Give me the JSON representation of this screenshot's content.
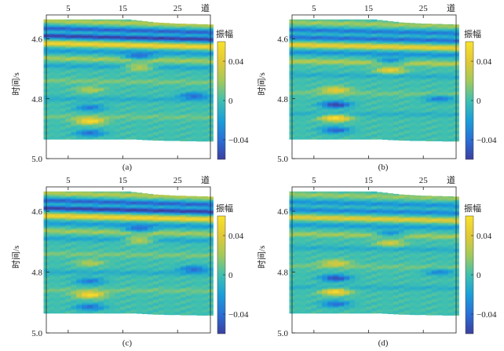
{
  "figure_domain": "seismic amplitude sections",
  "colormap": [
    "#3b3f9e",
    "#2a6fd6",
    "#1a9fd8",
    "#3fc0b0",
    "#a3c95a",
    "#e2c936",
    "#f9e22a"
  ],
  "chart_data": [
    {
      "type": "heatmap",
      "panel_label": "(a)",
      "x_tick_labels": [
        "5",
        "15",
        "25"
      ],
      "x_ticks": [
        5,
        15,
        25
      ],
      "xlim": [
        1,
        31
      ],
      "x_unit_label": "道",
      "y_tick_labels": [
        "4.6",
        "4.8",
        "5.0"
      ],
      "y_ticks": [
        4.6,
        4.8,
        5.0
      ],
      "ylim": [
        4.52,
        5.0
      ],
      "ylabel": "时间/s",
      "colorbar_title": "振幅",
      "colorbar_tick_labels": [
        "0.04",
        "0",
        "−0.04"
      ],
      "colorbar_ticks": [
        0.04,
        0,
        -0.04
      ],
      "clim": [
        -0.06,
        0.06
      ],
      "data_top_time": [
        4.535,
        4.535,
        4.535,
        4.535,
        4.535,
        4.535,
        4.535,
        4.535,
        4.535,
        4.535,
        4.535,
        4.535,
        4.535,
        4.535,
        4.535,
        4.535,
        4.537,
        4.539,
        4.541,
        4.543,
        4.545,
        4.546,
        4.547,
        4.548,
        4.549,
        4.549,
        4.55,
        4.55,
        4.551,
        4.551,
        4.552
      ],
      "data_bottom_time": [
        4.935,
        4.935,
        4.935,
        4.935,
        4.935,
        4.935,
        4.935,
        4.935,
        4.935,
        4.935,
        4.935,
        4.935,
        4.935,
        4.935,
        4.935,
        4.935,
        4.935,
        4.936,
        4.937,
        4.938,
        4.939,
        4.939,
        4.94,
        4.94,
        4.94,
        4.941,
        4.941,
        4.941,
        4.942,
        4.942,
        4.942
      ],
      "reflectors": [
        {
          "t0": 4.54,
          "dip": 0.014,
          "amp": 0.025
        },
        {
          "t0": 4.565,
          "dip": 0.014,
          "amp": -0.045
        },
        {
          "t0": 4.59,
          "dip": 0.012,
          "amp": -0.06
        },
        {
          "t0": 4.615,
          "dip": 0.012,
          "amp": 0.05
        },
        {
          "t0": 4.64,
          "dip": 0.01,
          "amp": -0.02
        },
        {
          "t0": 4.665,
          "dip": 0.01,
          "amp": 0.02
        },
        {
          "t0": 4.69,
          "dip": 0.008,
          "amp": -0.015
        },
        {
          "t0": 4.74,
          "dip": 0.006,
          "amp": 0.012
        },
        {
          "t0": 4.8,
          "dip": 0.004,
          "amp": -0.012
        },
        {
          "t0": 4.86,
          "dip": 0.002,
          "amp": 0.01
        }
      ],
      "anomalies": [
        {
          "trace": 18,
          "time": 4.66,
          "amp": -0.04
        },
        {
          "trace": 18,
          "time": 4.695,
          "amp": 0.04
        },
        {
          "trace": 28,
          "time": 4.79,
          "amp": -0.04
        },
        {
          "trace": 9,
          "time": 4.77,
          "amp": 0.025
        },
        {
          "trace": 9,
          "time": 4.83,
          "amp": -0.035
        },
        {
          "trace": 9,
          "time": 4.875,
          "amp": 0.055
        },
        {
          "trace": 9,
          "time": 4.915,
          "amp": -0.04
        }
      ]
    },
    {
      "type": "heatmap",
      "panel_label": "(b)",
      "x_tick_labels": [
        "5",
        "15",
        "25"
      ],
      "x_ticks": [
        5,
        15,
        25
      ],
      "xlim": [
        1,
        31
      ],
      "x_unit_label": "道",
      "y_tick_labels": [
        "4.6",
        "4.8",
        "5.0"
      ],
      "y_ticks": [
        4.6,
        4.8,
        5.0
      ],
      "ylim": [
        4.52,
        5.0
      ],
      "ylabel": "时间/s",
      "colorbar_title": "振幅",
      "colorbar_tick_labels": [
        "0.04",
        "0",
        "−0.04"
      ],
      "colorbar_ticks": [
        0.04,
        0,
        -0.04
      ],
      "clim": [
        -0.06,
        0.06
      ],
      "data_top_time": [
        4.535,
        4.535,
        4.535,
        4.535,
        4.535,
        4.535,
        4.535,
        4.535,
        4.535,
        4.535,
        4.535,
        4.535,
        4.535,
        4.535,
        4.535,
        4.535,
        4.537,
        4.539,
        4.541,
        4.543,
        4.545,
        4.546,
        4.547,
        4.548,
        4.549,
        4.549,
        4.55,
        4.55,
        4.551,
        4.551,
        4.552
      ],
      "data_bottom_time": [
        4.935,
        4.935,
        4.935,
        4.935,
        4.935,
        4.935,
        4.935,
        4.935,
        4.935,
        4.935,
        4.935,
        4.935,
        4.935,
        4.935,
        4.935,
        4.935,
        4.935,
        4.936,
        4.937,
        4.938,
        4.939,
        4.939,
        4.94,
        4.94,
        4.94,
        4.941,
        4.941,
        4.941,
        4.942,
        4.942,
        4.942
      ],
      "reflectors": [
        {
          "t0": 4.545,
          "dip": 0.012,
          "amp": 0.02
        },
        {
          "t0": 4.57,
          "dip": 0.012,
          "amp": -0.035
        },
        {
          "t0": 4.595,
          "dip": 0.011,
          "amp": -0.04
        },
        {
          "t0": 4.62,
          "dip": 0.011,
          "amp": 0.045
        },
        {
          "t0": 4.645,
          "dip": 0.01,
          "amp": -0.025
        },
        {
          "t0": 4.675,
          "dip": 0.009,
          "amp": 0.025
        },
        {
          "t0": 4.72,
          "dip": 0.007,
          "amp": -0.012
        },
        {
          "t0": 4.78,
          "dip": 0.005,
          "amp": 0.01
        },
        {
          "t0": 4.85,
          "dip": 0.003,
          "amp": -0.01
        }
      ],
      "anomalies": [
        {
          "trace": 19,
          "time": 4.675,
          "amp": -0.04
        },
        {
          "trace": 19,
          "time": 4.705,
          "amp": 0.045
        },
        {
          "trace": 28,
          "time": 4.8,
          "amp": -0.035
        },
        {
          "trace": 9,
          "time": 4.77,
          "amp": 0.04
        },
        {
          "trace": 9,
          "time": 4.82,
          "amp": -0.06
        },
        {
          "trace": 9,
          "time": 4.865,
          "amp": 0.06
        },
        {
          "trace": 9,
          "time": 4.905,
          "amp": -0.045
        }
      ]
    },
    {
      "type": "heatmap",
      "panel_label": "(c)",
      "x_tick_labels": [
        "5",
        "15",
        "25"
      ],
      "x_ticks": [
        5,
        15,
        25
      ],
      "xlim": [
        1,
        31
      ],
      "x_unit_label": "道",
      "y_tick_labels": [
        "4.6",
        "4.8",
        "5.0"
      ],
      "y_ticks": [
        4.6,
        4.8,
        5.0
      ],
      "ylim": [
        4.52,
        5.0
      ],
      "ylabel": "时间/s",
      "colorbar_title": "振幅",
      "colorbar_tick_labels": [
        "0.04",
        "0",
        "−0.04"
      ],
      "colorbar_ticks": [
        0.04,
        0,
        -0.04
      ],
      "clim": [
        -0.06,
        0.06
      ],
      "data_top_time": [
        4.535,
        4.535,
        4.535,
        4.535,
        4.535,
        4.535,
        4.535,
        4.535,
        4.535,
        4.535,
        4.535,
        4.535,
        4.535,
        4.535,
        4.535,
        4.535,
        4.537,
        4.539,
        4.541,
        4.543,
        4.545,
        4.546,
        4.547,
        4.548,
        4.549,
        4.549,
        4.55,
        4.55,
        4.551,
        4.551,
        4.552
      ],
      "data_bottom_time": [
        4.935,
        4.935,
        4.935,
        4.935,
        4.935,
        4.935,
        4.935,
        4.935,
        4.935,
        4.935,
        4.935,
        4.935,
        4.935,
        4.935,
        4.935,
        4.935,
        4.935,
        4.936,
        4.937,
        4.938,
        4.939,
        4.939,
        4.94,
        4.94,
        4.94,
        4.941,
        4.941,
        4.941,
        4.942,
        4.942,
        4.942
      ],
      "reflectors": [
        {
          "t0": 4.54,
          "dip": 0.014,
          "amp": 0.025
        },
        {
          "t0": 4.565,
          "dip": 0.014,
          "amp": -0.045
        },
        {
          "t0": 4.59,
          "dip": 0.012,
          "amp": -0.06
        },
        {
          "t0": 4.615,
          "dip": 0.012,
          "amp": 0.05
        },
        {
          "t0": 4.64,
          "dip": 0.01,
          "amp": -0.02
        },
        {
          "t0": 4.665,
          "dip": 0.01,
          "amp": 0.02
        },
        {
          "t0": 4.69,
          "dip": 0.008,
          "amp": -0.015
        },
        {
          "t0": 4.74,
          "dip": 0.006,
          "amp": 0.012
        },
        {
          "t0": 4.8,
          "dip": 0.004,
          "amp": -0.012
        },
        {
          "t0": 4.86,
          "dip": 0.002,
          "amp": 0.01
        }
      ],
      "anomalies": [
        {
          "trace": 18,
          "time": 4.66,
          "amp": -0.04
        },
        {
          "trace": 18,
          "time": 4.695,
          "amp": 0.04
        },
        {
          "trace": 28,
          "time": 4.79,
          "amp": -0.04
        },
        {
          "trace": 9,
          "time": 4.77,
          "amp": 0.025
        },
        {
          "trace": 9,
          "time": 4.83,
          "amp": -0.035
        },
        {
          "trace": 9,
          "time": 4.875,
          "amp": 0.055
        },
        {
          "trace": 9,
          "time": 4.915,
          "amp": -0.04
        }
      ]
    },
    {
      "type": "heatmap",
      "panel_label": "(d)",
      "x_tick_labels": [
        "5",
        "15",
        "25"
      ],
      "x_ticks": [
        5,
        15,
        25
      ],
      "xlim": [
        1,
        31
      ],
      "x_unit_label": "道",
      "y_tick_labels": [
        "4.6",
        "4.8",
        "5.0"
      ],
      "y_ticks": [
        4.6,
        4.8,
        5.0
      ],
      "ylim": [
        4.52,
        5.0
      ],
      "ylabel": "时间/s",
      "colorbar_title": "振幅",
      "colorbar_tick_labels": [
        "0.04",
        "0",
        "−0.04"
      ],
      "colorbar_ticks": [
        0.04,
        0,
        -0.04
      ],
      "clim": [
        -0.06,
        0.06
      ],
      "data_top_time": [
        4.535,
        4.535,
        4.535,
        4.535,
        4.535,
        4.535,
        4.535,
        4.535,
        4.535,
        4.535,
        4.535,
        4.535,
        4.535,
        4.535,
        4.535,
        4.535,
        4.537,
        4.539,
        4.541,
        4.543,
        4.545,
        4.546,
        4.547,
        4.548,
        4.549,
        4.549,
        4.55,
        4.55,
        4.551,
        4.551,
        4.552
      ],
      "data_bottom_time": [
        4.935,
        4.935,
        4.935,
        4.935,
        4.935,
        4.935,
        4.935,
        4.935,
        4.935,
        4.935,
        4.935,
        4.935,
        4.935,
        4.935,
        4.935,
        4.935,
        4.935,
        4.936,
        4.937,
        4.938,
        4.939,
        4.939,
        4.94,
        4.94,
        4.94,
        4.941,
        4.941,
        4.941,
        4.942,
        4.942,
        4.942
      ],
      "reflectors": [
        {
          "t0": 4.545,
          "dip": 0.012,
          "amp": 0.018
        },
        {
          "t0": 4.57,
          "dip": 0.012,
          "amp": -0.025
        },
        {
          "t0": 4.595,
          "dip": 0.011,
          "amp": -0.03
        },
        {
          "t0": 4.62,
          "dip": 0.011,
          "amp": 0.04
        },
        {
          "t0": 4.645,
          "dip": 0.01,
          "amp": -0.02
        },
        {
          "t0": 4.675,
          "dip": 0.009,
          "amp": 0.02
        },
        {
          "t0": 4.72,
          "dip": 0.007,
          "amp": -0.012
        },
        {
          "t0": 4.78,
          "dip": 0.005,
          "amp": 0.01
        },
        {
          "t0": 4.85,
          "dip": 0.003,
          "amp": -0.01
        }
      ],
      "anomalies": [
        {
          "trace": 19,
          "time": 4.675,
          "amp": -0.035
        },
        {
          "trace": 19,
          "time": 4.705,
          "amp": 0.035
        },
        {
          "trace": 28,
          "time": 4.8,
          "amp": -0.03
        },
        {
          "trace": 9,
          "time": 4.77,
          "amp": 0.035
        },
        {
          "trace": 9,
          "time": 4.82,
          "amp": -0.055
        },
        {
          "trace": 9,
          "time": 4.865,
          "amp": 0.055
        },
        {
          "trace": 9,
          "time": 4.905,
          "amp": -0.04
        }
      ]
    }
  ]
}
